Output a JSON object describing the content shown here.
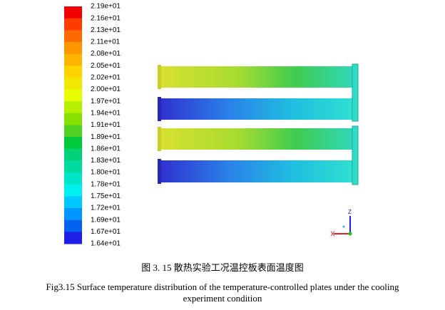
{
  "colorbar": {
    "labels": [
      "2.19e+01",
      "2.16e+01",
      "2.13e+01",
      "2.11e+01",
      "2.08e+01",
      "2.05e+01",
      "2.02e+01",
      "2.00e+01",
      "1.97e+01",
      "1.94e+01",
      "1.91e+01",
      "1.89e+01",
      "1.86e+01",
      "1.83e+01",
      "1.80e+01",
      "1.78e+01",
      "1.75e+01",
      "1.72e+01",
      "1.69e+01",
      "1.67e+01",
      "1.64e+01"
    ],
    "colors": [
      "#f00000",
      "#ff3c00",
      "#ff6a00",
      "#ff9600",
      "#ffb400",
      "#ffd200",
      "#f0e800",
      "#e6ff00",
      "#b4f000",
      "#86e000",
      "#50d020",
      "#00c83c",
      "#00d278",
      "#00dca0",
      "#00e6c8",
      "#00f0f0",
      "#00c8ff",
      "#0096ff",
      "#0064f0",
      "#1e1ee6"
    ]
  },
  "axes": {
    "x": "X",
    "z": "Z"
  },
  "caption": {
    "cn": "图 3. 15    散热实验工况温控板表面温度图",
    "en_line1": "Fig3.15    Surface temperature distribution of the temperature-controlled plates under the cooling",
    "en_line2": "experiment condition"
  }
}
